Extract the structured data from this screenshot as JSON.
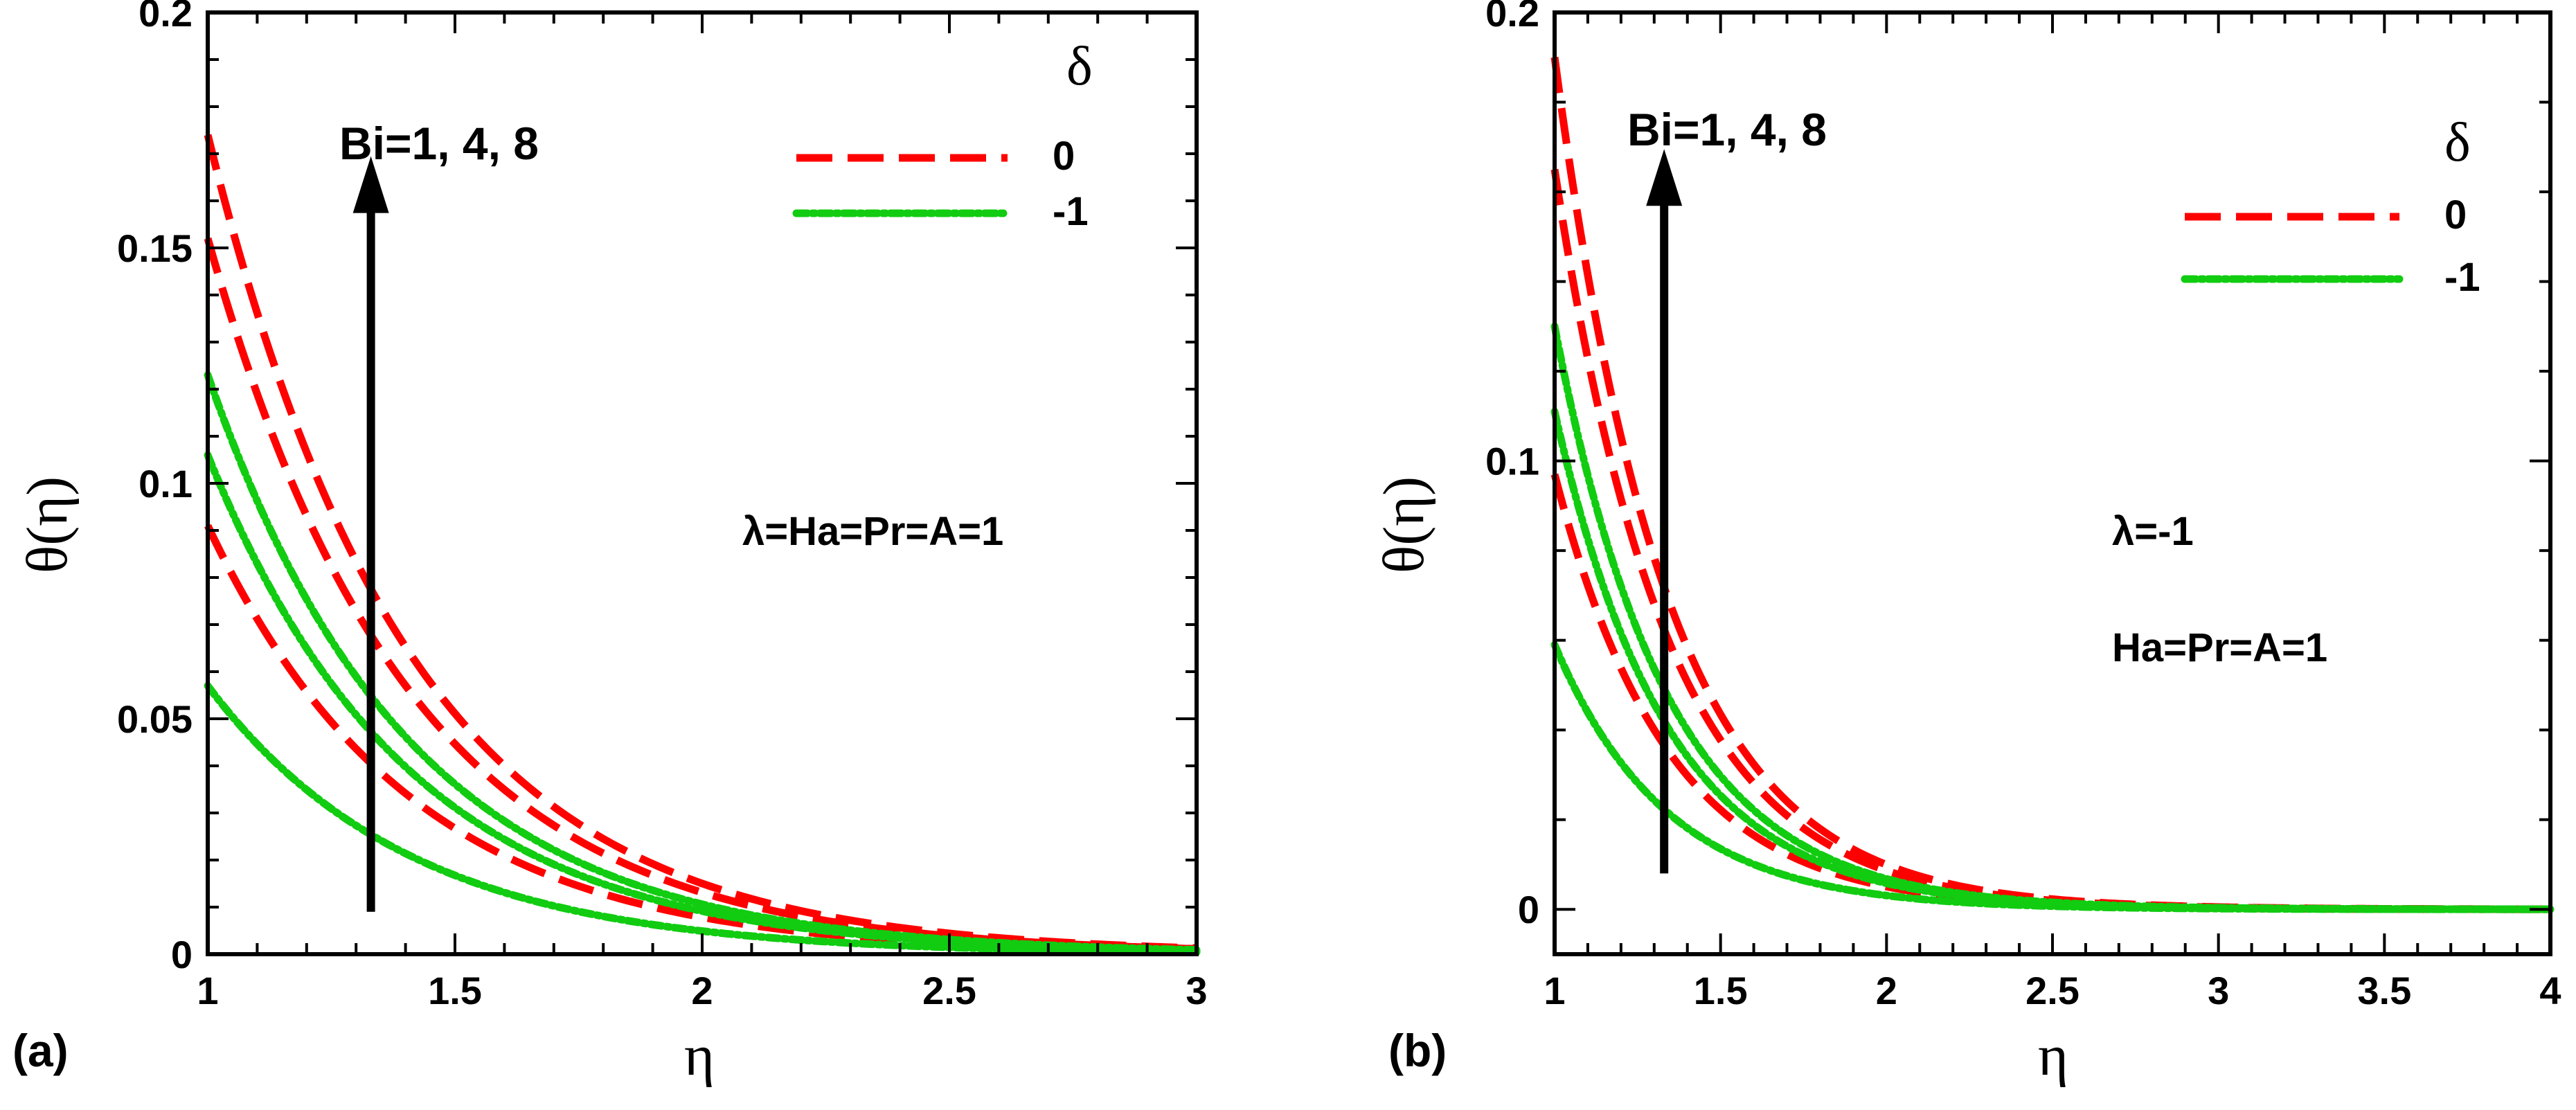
{
  "colors": {
    "series_delta_0": "#ff0000",
    "series_delta_m1": "#11cc11",
    "axis": "#000000",
    "arrow": "#000000"
  },
  "chart_data": [
    {
      "type": "line",
      "panel_label": "(a)",
      "xlabel": "η",
      "ylabel": "θ(η)",
      "xlim": [
        1,
        3
      ],
      "ylim": [
        0,
        0.2
      ],
      "xticks": [
        "1",
        "1.5",
        "2",
        "2.5",
        "3"
      ],
      "yticks": [
        "0",
        "0.05",
        "0.1",
        "0.15",
        "0.2"
      ],
      "legend_title": "δ",
      "legend_entries": [
        "0",
        "-1"
      ],
      "legend_position": "top-right",
      "arrow_label": "Bi=1, 4, 8",
      "arrow_x": 1.33,
      "arrow_y_range": [
        0.009,
        0.168
      ],
      "annotations": [
        "λ=Ha=Pr=A=1"
      ],
      "series": [
        {
          "name": "0",
          "Bi": 1,
          "theta0": 0.091,
          "decay": 2.45
        },
        {
          "name": "0",
          "Bi": 4,
          "theta0": 0.152,
          "decay": 2.45
        },
        {
          "name": "0",
          "Bi": 8,
          "theta0": 0.174,
          "decay": 2.45
        },
        {
          "name": "-1",
          "Bi": 1,
          "theta0": 0.057,
          "decay": 2.45
        },
        {
          "name": "-1",
          "Bi": 4,
          "theta0": 0.106,
          "decay": 2.45
        },
        {
          "name": "-1",
          "Bi": 8,
          "theta0": 0.123,
          "decay": 2.45
        }
      ]
    },
    {
      "type": "line",
      "panel_label": "(b)",
      "xlabel": "η",
      "ylabel": "θ(η)",
      "xlim": [
        1,
        4
      ],
      "ylim": [
        -0.01,
        0.2
      ],
      "xticks": [
        "1",
        "1.5",
        "2",
        "2.5",
        "3",
        "3.5",
        "4"
      ],
      "yticks": [
        "0",
        "0.1",
        "0.2"
      ],
      "legend_title": "δ",
      "legend_entries": [
        "0",
        "-1"
      ],
      "legend_position": "top-right",
      "arrow_label": "Bi=1, 4, 8",
      "arrow_x": 1.33,
      "arrow_y_range": [
        0.008,
        0.168
      ],
      "annotations": [
        "λ=-1",
        "Ha=Pr=A=1"
      ],
      "series": [
        {
          "name": "0",
          "Bi": 1,
          "theta0": 0.097,
          "decay": 2.95
        },
        {
          "name": "0",
          "Bi": 4,
          "theta0": 0.165,
          "decay": 2.95
        },
        {
          "name": "0",
          "Bi": 8,
          "theta0": 0.19,
          "decay": 2.95
        },
        {
          "name": "-1",
          "Bi": 1,
          "theta0": 0.059,
          "decay": 2.95
        },
        {
          "name": "-1",
          "Bi": 4,
          "theta0": 0.111,
          "decay": 2.95
        },
        {
          "name": "-1",
          "Bi": 8,
          "theta0": 0.13,
          "decay": 2.95
        }
      ]
    }
  ]
}
